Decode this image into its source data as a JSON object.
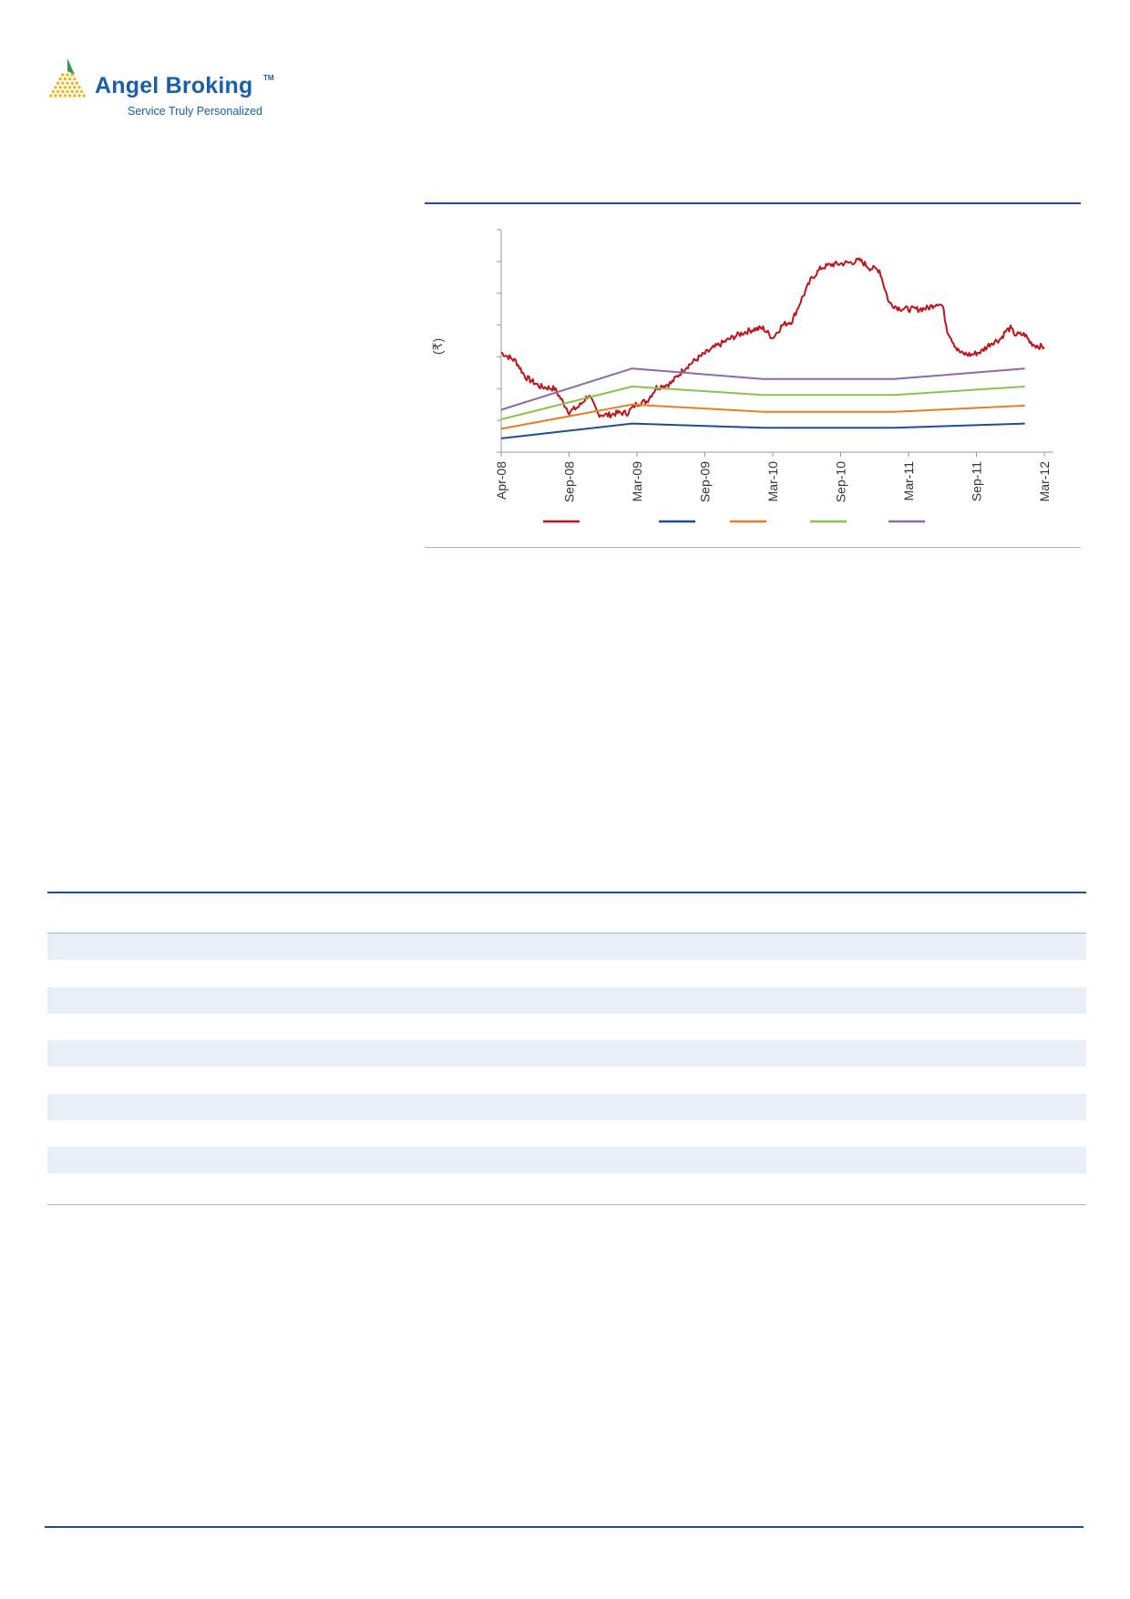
{
  "header": {
    "brand_name": "Angel Broking",
    "brand_tm": "TM",
    "brand_tagline": "Service Truly Personalized"
  },
  "colors": {
    "brand_blue": "#1a5fa8",
    "logo_green": "#2e9a47",
    "logo_yellow": "#f2b619",
    "rule_blue": "#1d4f8f",
    "table_shade": "#e9eff7"
  },
  "chart_data": {
    "type": "line",
    "ylabel": "(₹)",
    "x_tick_labels": [
      "Apr-08",
      "Sep-08",
      "Mar-09",
      "Sep-09",
      "Mar-10",
      "Sep-10",
      "Mar-11",
      "Sep-11",
      "Mar-12"
    ],
    "y_tick_count": 8,
    "y_tick_labels": [],
    "grid": false,
    "legend_position": "bottom",
    "series": [
      {
        "color": "#c0141c",
        "style": "noisy",
        "points": [
          [
            0,
            4.7
          ],
          [
            3,
            4.3
          ],
          [
            5,
            3.55
          ],
          [
            8,
            3.1
          ],
          [
            11,
            3.0
          ],
          [
            14,
            1.9
          ],
          [
            16,
            2.15
          ],
          [
            18,
            2.7
          ],
          [
            20,
            1.8
          ],
          [
            22,
            1.75
          ],
          [
            24,
            1.85
          ],
          [
            26,
            1.85
          ],
          [
            28,
            2.3
          ],
          [
            30,
            2.4
          ],
          [
            32,
            3.05
          ],
          [
            35,
            3.25
          ],
          [
            38,
            4.0
          ],
          [
            41,
            4.5
          ],
          [
            44,
            4.95
          ],
          [
            46,
            5.2
          ],
          [
            48,
            5.45
          ],
          [
            50,
            5.65
          ],
          [
            52,
            5.8
          ],
          [
            54,
            5.85
          ],
          [
            56,
            5.4
          ],
          [
            58,
            6.0
          ],
          [
            60,
            6.2
          ],
          [
            62,
            7.25
          ],
          [
            64,
            8.2
          ],
          [
            66,
            8.7
          ],
          [
            68,
            8.85
          ],
          [
            70,
            8.9
          ],
          [
            72,
            8.95
          ],
          [
            74,
            9.05
          ],
          [
            76,
            8.7
          ],
          [
            78,
            8.6
          ],
          [
            79,
            7.8
          ],
          [
            80,
            7.05
          ],
          [
            82,
            6.8
          ],
          [
            84,
            6.75
          ],
          [
            86,
            6.75
          ],
          [
            88,
            6.8
          ],
          [
            90,
            7.05
          ],
          [
            91,
            6.9
          ],
          [
            92,
            5.75
          ],
          [
            93,
            5.3
          ],
          [
            94,
            4.85
          ],
          [
            95,
            4.65
          ],
          [
            97,
            4.6
          ],
          [
            99,
            4.75
          ],
          [
            101,
            5.15
          ],
          [
            103,
            5.35
          ],
          [
            104,
            5.7
          ],
          [
            105,
            5.85
          ],
          [
            106,
            5.55
          ],
          [
            107,
            5.55
          ],
          [
            108,
            5.55
          ],
          [
            109,
            5.2
          ],
          [
            110,
            5.05
          ],
          [
            111,
            5.0
          ],
          [
            112,
            4.95
          ]
        ]
      },
      {
        "color": "#1d4f8f",
        "style": "smooth",
        "points": [
          [
            0,
            0.65
          ],
          [
            27,
            1.35
          ],
          [
            54,
            1.15
          ],
          [
            81,
            1.15
          ],
          [
            108,
            1.35
          ]
        ]
      },
      {
        "color": "#e67e22",
        "style": "smooth",
        "points": [
          [
            0,
            1.1
          ],
          [
            27,
            2.25
          ],
          [
            54,
            1.9
          ],
          [
            81,
            1.9
          ],
          [
            108,
            2.2
          ]
        ]
      },
      {
        "color": "#8cc152",
        "style": "smooth",
        "points": [
          [
            0,
            1.55
          ],
          [
            27,
            3.1
          ],
          [
            54,
            2.7
          ],
          [
            81,
            2.7
          ],
          [
            108,
            3.1
          ]
        ]
      },
      {
        "color": "#8e6aa8",
        "style": "smooth",
        "points": [
          [
            0,
            2.0
          ],
          [
            27,
            3.95
          ],
          [
            54,
            3.45
          ],
          [
            81,
            3.45
          ],
          [
            108,
            3.95
          ]
        ]
      }
    ]
  },
  "table": {
    "row_count": 10,
    "shaded_rows": [
      0,
      2,
      4,
      6,
      8
    ]
  }
}
